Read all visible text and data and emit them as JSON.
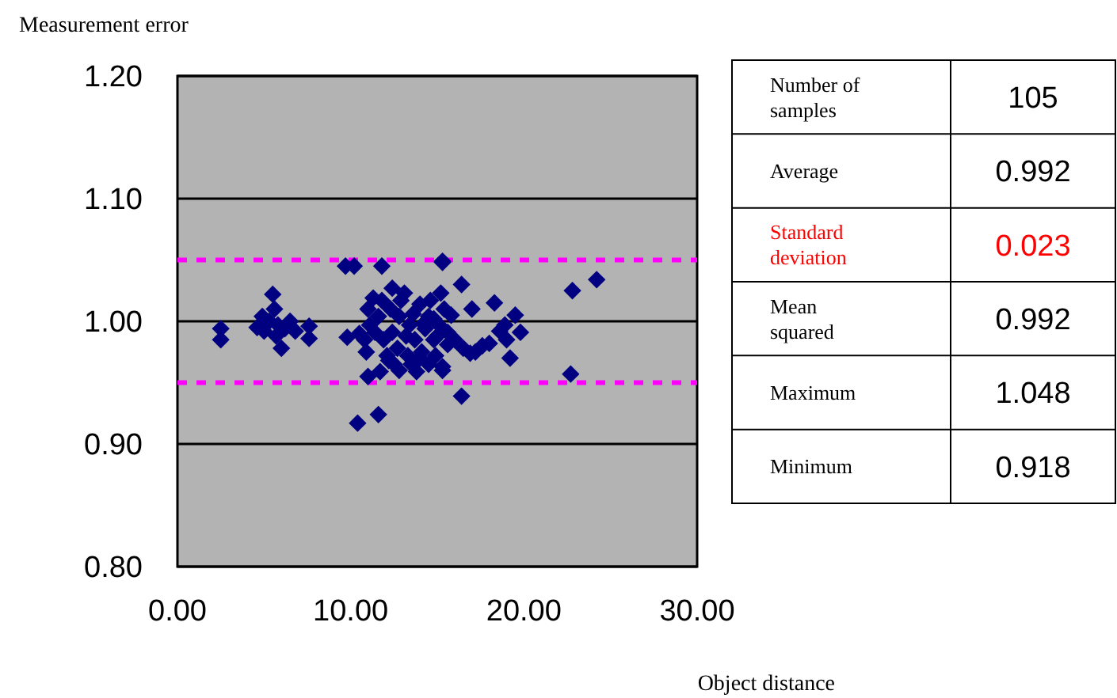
{
  "chart_data": [
    {
      "type": "scatter",
      "ylabel": "Measurement error",
      "xlabel": "Object distance",
      "xlim": [
        0,
        30
      ],
      "ylim": [
        0.8,
        1.2
      ],
      "xticks": [
        {
          "value": 0,
          "label": "0.00"
        },
        {
          "value": 10,
          "label": "10.00"
        },
        {
          "value": 20,
          "label": "20.00"
        },
        {
          "value": 30,
          "label": "30.00"
        }
      ],
      "yticks": [
        {
          "value": 0.8,
          "label": "0.80"
        },
        {
          "value": 0.9,
          "label": "0.90"
        },
        {
          "value": 1.0,
          "label": "1.00"
        },
        {
          "value": 1.1,
          "label": "1.10"
        },
        {
          "value": 1.2,
          "label": "1.20"
        }
      ],
      "grid": "y",
      "marker": "diamond",
      "ref_lines": [
        {
          "axis": "y",
          "value": 1.05,
          "color": "#ff00ff",
          "line_style": "dashed"
        },
        {
          "axis": "y",
          "value": 0.95,
          "color": "#ff00ff",
          "line_style": "dashed"
        }
      ],
      "series": [
        {
          "color": "#000080",
          "x": [
            2.5,
            2.5,
            4.6,
            4.9,
            5.5,
            5.6,
            5.3,
            5.7,
            6.0,
            6.2,
            5.8,
            7.6,
            7.6,
            9.7,
            10.2,
            9.8,
            10.4,
            11.6,
            11.8,
            15.3,
            10.8,
            11.0,
            11.1,
            11.3,
            11.4,
            11.6,
            11.7,
            11.8,
            11.9,
            12.1,
            12.3,
            12.4,
            12.4,
            12.5,
            12.7,
            12.8,
            12.9,
            13.1,
            13.2,
            13.3,
            13.4,
            13.5,
            13.6,
            13.7,
            13.8,
            14.0,
            14.1,
            14.3,
            14.5,
            14.5,
            14.6,
            14.8,
            14.9,
            15.1,
            15.2,
            15.3,
            15.4,
            15.6,
            15.6,
            14.2,
            14.8,
            15.8,
            16.0,
            16.5,
            17.2,
            17.6,
            12.2,
            10.9,
            14.0,
            12.8,
            15.0,
            16.4,
            15.3,
            18.3,
            19.5,
            19.8,
            19.2,
            16.4,
            15.3,
            16.9,
            18.9,
            18.0,
            22.8,
            24.2,
            22.7,
            6.5,
            6.8,
            5.0,
            10.5,
            11.0,
            19.0,
            18.6,
            17.0
          ],
          "values": [
            0.994,
            0.985,
            0.995,
            1.004,
            1.022,
            1.01,
            1.0,
            0.988,
            0.978,
            0.994,
            0.997,
            0.996,
            0.986,
            1.045,
            1.045,
            0.987,
            0.917,
            0.924,
            1.045,
            1.048,
            0.985,
            1.01,
            0.997,
            1.019,
            0.991,
            1.004,
            0.959,
            1.017,
            0.985,
            0.972,
            1.01,
            1.027,
            0.991,
            0.965,
            0.978,
            1.004,
            1.017,
            1.023,
            0.988,
            0.972,
            0.997,
            0.965,
            1.006,
            0.985,
            0.959,
            1.014,
            0.975,
            0.994,
            1.004,
            0.965,
            1.017,
            0.985,
            0.972,
            0.997,
            1.023,
            0.963,
            1.01,
            0.981,
            0.991,
            0.998,
            1.002,
            1.005,
            0.985,
            0.978,
            0.975,
            0.98,
            0.968,
            0.975,
            0.97,
            0.96,
            0.988,
            1.03,
            1.049,
            1.015,
            1.005,
            0.991,
            0.97,
            0.939,
            0.96,
            0.974,
            0.997,
            0.982,
            1.025,
            1.034,
            0.957,
            1.0,
            0.992,
            0.992,
            0.99,
            0.955,
            0.985,
            0.992,
            1.01
          ]
        }
      ]
    },
    {
      "type": "other",
      "annotations": [
        "Number of samples",
        "105",
        "Average",
        "0.992",
        "Standard deviation",
        "0.023",
        "Mean squared",
        "0.992",
        "Maximum",
        "1.048",
        "Minimum",
        "0.918"
      ]
    }
  ]
}
